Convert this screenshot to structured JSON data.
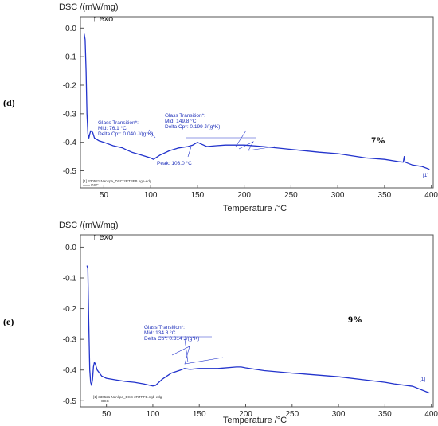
{
  "chart_data": [
    {
      "type": "line",
      "panel_label": "(d)",
      "percent_label": "7%",
      "ylabel": "DSC /(mW/mg)",
      "exo_label": "↑ exo",
      "xlabel": "Temperature /°C",
      "xlim": [
        25,
        402
      ],
      "ylim": [
        -0.56,
        0.04
      ],
      "xticks": [
        "50",
        "100",
        "150",
        "200",
        "250",
        "300",
        "350",
        "400"
      ],
      "yticks": [
        "0.0",
        "-0.1",
        "-0.2",
        "-0.3",
        "-0.4",
        "-0.5"
      ],
      "series": [
        {
          "color": "#2233cc",
          "x": [
            29,
            30,
            31,
            32,
            33,
            34,
            35,
            36,
            38,
            40,
            45,
            50,
            60,
            70,
            75,
            80,
            90,
            100,
            103,
            110,
            120,
            130,
            140,
            145,
            150,
            160,
            170,
            180,
            200,
            220,
            250,
            280,
            300,
            330,
            350,
            365,
            370,
            371,
            372,
            380,
            390,
            398
          ],
          "y": [
            -0.02,
            -0.04,
            -0.15,
            -0.3,
            -0.37,
            -0.385,
            -0.37,
            -0.36,
            -0.365,
            -0.385,
            -0.395,
            -0.4,
            -0.412,
            -0.42,
            -0.428,
            -0.435,
            -0.445,
            -0.455,
            -0.46,
            -0.445,
            -0.43,
            -0.42,
            -0.415,
            -0.41,
            -0.4,
            -0.415,
            -0.412,
            -0.41,
            -0.41,
            -0.415,
            -0.425,
            -0.435,
            -0.44,
            -0.455,
            -0.46,
            -0.468,
            -0.47,
            -0.45,
            -0.47,
            -0.48,
            -0.485,
            -0.495
          ]
        }
      ],
      "annotations": [
        {
          "lines": [
            "Glass Transition*:",
            "Mid:        76.1 °C",
            "Delta Cp*:      0.040 J/(g*K)"
          ]
        },
        {
          "lines": [
            "Glass Transition*:",
            "Mid:        149.8 °C",
            "Delta Cp*:      0.199 J/(g*K)"
          ]
        },
        {
          "lines": [
            "Peak: 103.0 °C"
          ]
        }
      ],
      "legend": [
        "[1]  330521 Nankpa_DSC 2RTPFB.ngb-edg",
        "——  DSC"
      ],
      "end_marker": "[1]"
    },
    {
      "type": "line",
      "panel_label": "(e)",
      "percent_label": "9%",
      "ylabel": "DSC /(mW/mg)",
      "exo_label": "↑ exo",
      "xlabel": "Temperature /°C",
      "xlim": [
        22,
        402
      ],
      "ylim": [
        -0.52,
        0.04
      ],
      "xticks": [
        "50",
        "100",
        "150",
        "200",
        "250",
        "300",
        "350",
        "400"
      ],
      "yticks": [
        "0.0",
        "-0.1",
        "-0.2",
        "-0.3",
        "-0.4",
        "-0.5"
      ],
      "series": [
        {
          "color": "#2233cc",
          "x": [
            29,
            30,
            31,
            32,
            33,
            34,
            35,
            36,
            37,
            38,
            40,
            45,
            50,
            60,
            70,
            80,
            90,
            100,
            103,
            110,
            120,
            130,
            134,
            140,
            150,
            170,
            190,
            195,
            200,
            220,
            250,
            280,
            300,
            330,
            350,
            360,
            380,
            398
          ],
          "y": [
            -0.06,
            -0.07,
            -0.25,
            -0.4,
            -0.44,
            -0.45,
            -0.43,
            -0.39,
            -0.375,
            -0.38,
            -0.4,
            -0.42,
            -0.427,
            -0.432,
            -0.437,
            -0.44,
            -0.445,
            -0.452,
            -0.45,
            -0.43,
            -0.41,
            -0.4,
            -0.395,
            -0.398,
            -0.395,
            -0.395,
            -0.39,
            -0.39,
            -0.393,
            -0.402,
            -0.41,
            -0.417,
            -0.422,
            -0.433,
            -0.44,
            -0.445,
            -0.453,
            -0.475
          ]
        }
      ],
      "annotations": [
        {
          "lines": [
            "Glass Transition*:",
            "Mid:        134.8 °C",
            "Delta Cp*:      0.314 J/(g*K)"
          ]
        }
      ],
      "legend": [
        "[1]  330521 Nankpa_DSC 2RTPFB.ngb-edg",
        "——  DSC"
      ],
      "end_marker": "[1]"
    }
  ]
}
